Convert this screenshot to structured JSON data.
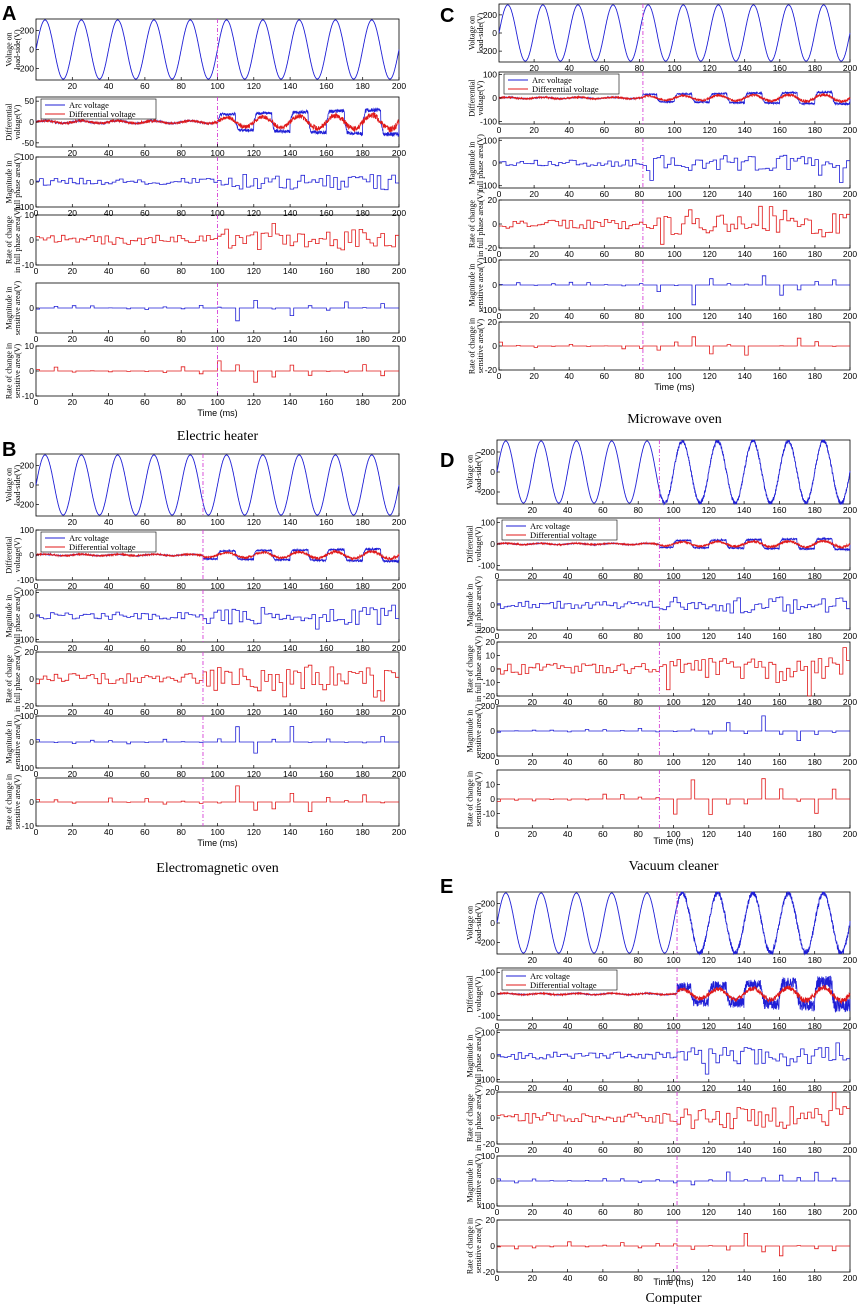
{
  "colors": {
    "blue": "#1f1fd6",
    "red": "#e01818",
    "marker": "#d63fd6",
    "axis": "#000000"
  },
  "row_labels": [
    [
      "Voltage on",
      "load-side(V)"
    ],
    [
      "Differential",
      "voltage(V)"
    ],
    [
      "Magnitude in",
      "full phase area(V)"
    ],
    [
      "Rate of change",
      "in full phase area(V)"
    ],
    [
      "Magnitude in",
      "sensitive area(V)"
    ],
    [
      "Rate of change in",
      "sensitive area(V)"
    ]
  ],
  "legend": [
    "Arc voltage",
    "Differential voltage"
  ],
  "x_label": "Time (ms)",
  "chart_data": [
    {
      "id": "A",
      "type": "line",
      "caption": "Electric heater",
      "arc_start_ms": 100,
      "x_range": [
        0,
        200
      ],
      "x_ticks": [
        [
          20,
          40,
          60,
          80,
          100,
          120,
          140,
          160,
          180,
          200
        ],
        [
          20,
          40,
          60,
          80,
          100,
          120,
          140,
          160,
          180,
          200
        ],
        [
          0,
          20,
          40,
          60,
          80,
          100,
          120,
          140,
          160,
          180,
          200
        ],
        [
          0,
          20,
          40,
          60,
          80,
          100,
          120,
          140,
          160,
          180,
          200
        ],
        [
          0,
          20,
          40,
          60,
          80,
          100,
          120,
          140,
          160,
          180,
          200
        ],
        [
          0,
          20,
          40,
          60,
          80,
          100,
          120,
          140,
          160,
          180,
          200
        ]
      ],
      "rows": [
        {
          "ylim": [
            -320,
            320
          ],
          "yticks": [
            200,
            0,
            -200
          ]
        },
        {
          "ylim": [
            -60,
            60
          ],
          "yticks": [
            50,
            0,
            -50
          ]
        },
        {
          "ylim": [
            -100,
            100
          ],
          "yticks": [
            100,
            0,
            -100
          ]
        },
        {
          "ylim": [
            -10,
            10
          ],
          "yticks": [
            10,
            0,
            -10
          ]
        },
        {
          "ylim": [
            -60,
            60
          ],
          "yticks": [
            0
          ]
        },
        {
          "ylim": [
            -10,
            10
          ],
          "yticks": [
            10,
            0,
            -10
          ]
        }
      ]
    },
    {
      "id": "B",
      "type": "line",
      "caption": "Electromagnetic oven",
      "arc_start_ms": 92,
      "x_range": [
        0,
        200
      ],
      "x_ticks": [
        [
          20,
          40,
          60,
          80,
          100,
          120,
          140,
          160,
          180,
          200
        ],
        [
          0,
          20,
          40,
          60,
          80,
          100,
          120,
          140,
          160,
          180,
          200
        ],
        [
          0,
          20,
          40,
          60,
          80,
          100,
          120,
          140,
          160,
          180,
          200
        ],
        [
          0,
          20,
          40,
          60,
          80,
          100,
          120,
          140,
          160,
          180,
          200
        ],
        [
          0,
          20,
          40,
          60,
          80,
          100,
          120,
          140,
          160,
          180,
          200
        ],
        [
          0,
          20,
          40,
          60,
          80,
          100,
          120,
          140,
          160,
          180,
          200
        ]
      ],
      "rows": [
        {
          "ylim": [
            -320,
            320
          ],
          "yticks": [
            200,
            0,
            -200
          ]
        },
        {
          "ylim": [
            -100,
            100
          ],
          "yticks": [
            100,
            0,
            -100
          ]
        },
        {
          "ylim": [
            -110,
            110
          ],
          "yticks": [
            100,
            0,
            -100
          ]
        },
        {
          "ylim": [
            -20,
            20
          ],
          "yticks": [
            20,
            0,
            -20
          ]
        },
        {
          "ylim": [
            -100,
            100
          ],
          "yticks": [
            100,
            0,
            -100
          ]
        },
        {
          "ylim": [
            -10,
            10
          ],
          "yticks": [
            0,
            -10
          ]
        }
      ]
    },
    {
      "id": "C",
      "type": "line",
      "caption": "Microwave oven",
      "arc_start_ms": 82,
      "x_range": [
        0,
        200
      ],
      "x_ticks": [
        [
          20,
          40,
          60,
          80,
          100,
          120,
          140,
          160,
          180,
          200
        ],
        [
          0,
          20,
          40,
          60,
          80,
          100,
          120,
          140,
          160,
          180,
          200
        ],
        [
          0,
          20,
          40,
          60,
          80,
          100,
          120,
          140,
          160,
          180,
          200
        ],
        [
          0,
          20,
          40,
          60,
          80,
          100,
          120,
          140,
          160,
          180,
          200
        ],
        [
          0,
          20,
          40,
          60,
          80,
          100,
          120,
          140,
          160,
          180,
          200
        ],
        [
          0,
          20,
          40,
          60,
          80,
          100,
          120,
          140,
          160,
          180,
          200
        ]
      ],
      "rows": [
        {
          "ylim": [
            -320,
            320
          ],
          "yticks": [
            200,
            0,
            -200
          ]
        },
        {
          "ylim": [
            -110,
            110
          ],
          "yticks": [
            100,
            0,
            -100
          ]
        },
        {
          "ylim": [
            -110,
            110
          ],
          "yticks": [
            100,
            0,
            -100
          ]
        },
        {
          "ylim": [
            -20,
            20
          ],
          "yticks": [
            20,
            0,
            -20
          ]
        },
        {
          "ylim": [
            -100,
            100
          ],
          "yticks": [
            100,
            0,
            -100
          ]
        },
        {
          "ylim": [
            -20,
            20
          ],
          "yticks": [
            20,
            0,
            -20
          ]
        }
      ]
    },
    {
      "id": "D",
      "type": "line",
      "caption": "Vacuum cleaner",
      "arc_start_ms": 92,
      "x_range": [
        0,
        200
      ],
      "x_ticks": [
        [
          20,
          40,
          60,
          80,
          100,
          120,
          140,
          160,
          180,
          200
        ],
        [
          0,
          20,
          40,
          60,
          80,
          100,
          120,
          140,
          160,
          180,
          200
        ],
        [
          0,
          20,
          40,
          60,
          80,
          100,
          120,
          140,
          160,
          180,
          200
        ],
        [
          0,
          20,
          40,
          60,
          80,
          100,
          120,
          140,
          160,
          180,
          200
        ],
        [
          0,
          20,
          40,
          60,
          80,
          100,
          120,
          140,
          160,
          180,
          200
        ],
        [
          0,
          20,
          40,
          60,
          80,
          100,
          120,
          140,
          160,
          180,
          200
        ]
      ],
      "rows": [
        {
          "ylim": [
            -320,
            320
          ],
          "yticks": [
            200,
            0,
            -200
          ]
        },
        {
          "ylim": [
            -120,
            120
          ],
          "yticks": [
            100,
            0,
            -100
          ]
        },
        {
          "ylim": [
            -200,
            200
          ],
          "yticks": [
            0,
            -200
          ]
        },
        {
          "ylim": [
            -20,
            20
          ],
          "yticks": [
            20,
            10,
            0,
            -10,
            -20
          ]
        },
        {
          "ylim": [
            -200,
            200
          ],
          "yticks": [
            200,
            0,
            -200
          ]
        },
        {
          "ylim": [
            -20,
            20
          ],
          "yticks": [
            10,
            0,
            -10
          ]
        }
      ]
    },
    {
      "id": "E",
      "type": "line",
      "caption": "Computer",
      "arc_start_ms": 102,
      "x_range": [
        0,
        200
      ],
      "x_ticks": [
        [
          20,
          40,
          60,
          80,
          100,
          120,
          140,
          160,
          180,
          200
        ],
        [
          0,
          20,
          40,
          60,
          80,
          100,
          120,
          140,
          160,
          180,
          200
        ],
        [
          0,
          20,
          40,
          60,
          80,
          100,
          120,
          140,
          160,
          180,
          200
        ],
        [
          0,
          20,
          40,
          60,
          80,
          100,
          120,
          140,
          160,
          180,
          200
        ],
        [
          0,
          20,
          40,
          60,
          80,
          100,
          120,
          140,
          160,
          180,
          200
        ],
        [
          0,
          20,
          40,
          60,
          80,
          100,
          120,
          140,
          160,
          180,
          200
        ]
      ],
      "rows": [
        {
          "ylim": [
            -320,
            320
          ],
          "yticks": [
            200,
            0,
            -200
          ]
        },
        {
          "ylim": [
            -120,
            120
          ],
          "yticks": [
            100,
            0,
            -100
          ]
        },
        {
          "ylim": [
            -110,
            110
          ],
          "yticks": [
            100,
            0,
            -100
          ]
        },
        {
          "ylim": [
            -20,
            20
          ],
          "yticks": [
            20,
            0,
            -20
          ]
        },
        {
          "ylim": [
            -100,
            100
          ],
          "yticks": [
            100,
            0,
            -100
          ]
        },
        {
          "ylim": [
            -20,
            20
          ],
          "yticks": [
            20,
            0,
            -20
          ]
        }
      ]
    }
  ]
}
